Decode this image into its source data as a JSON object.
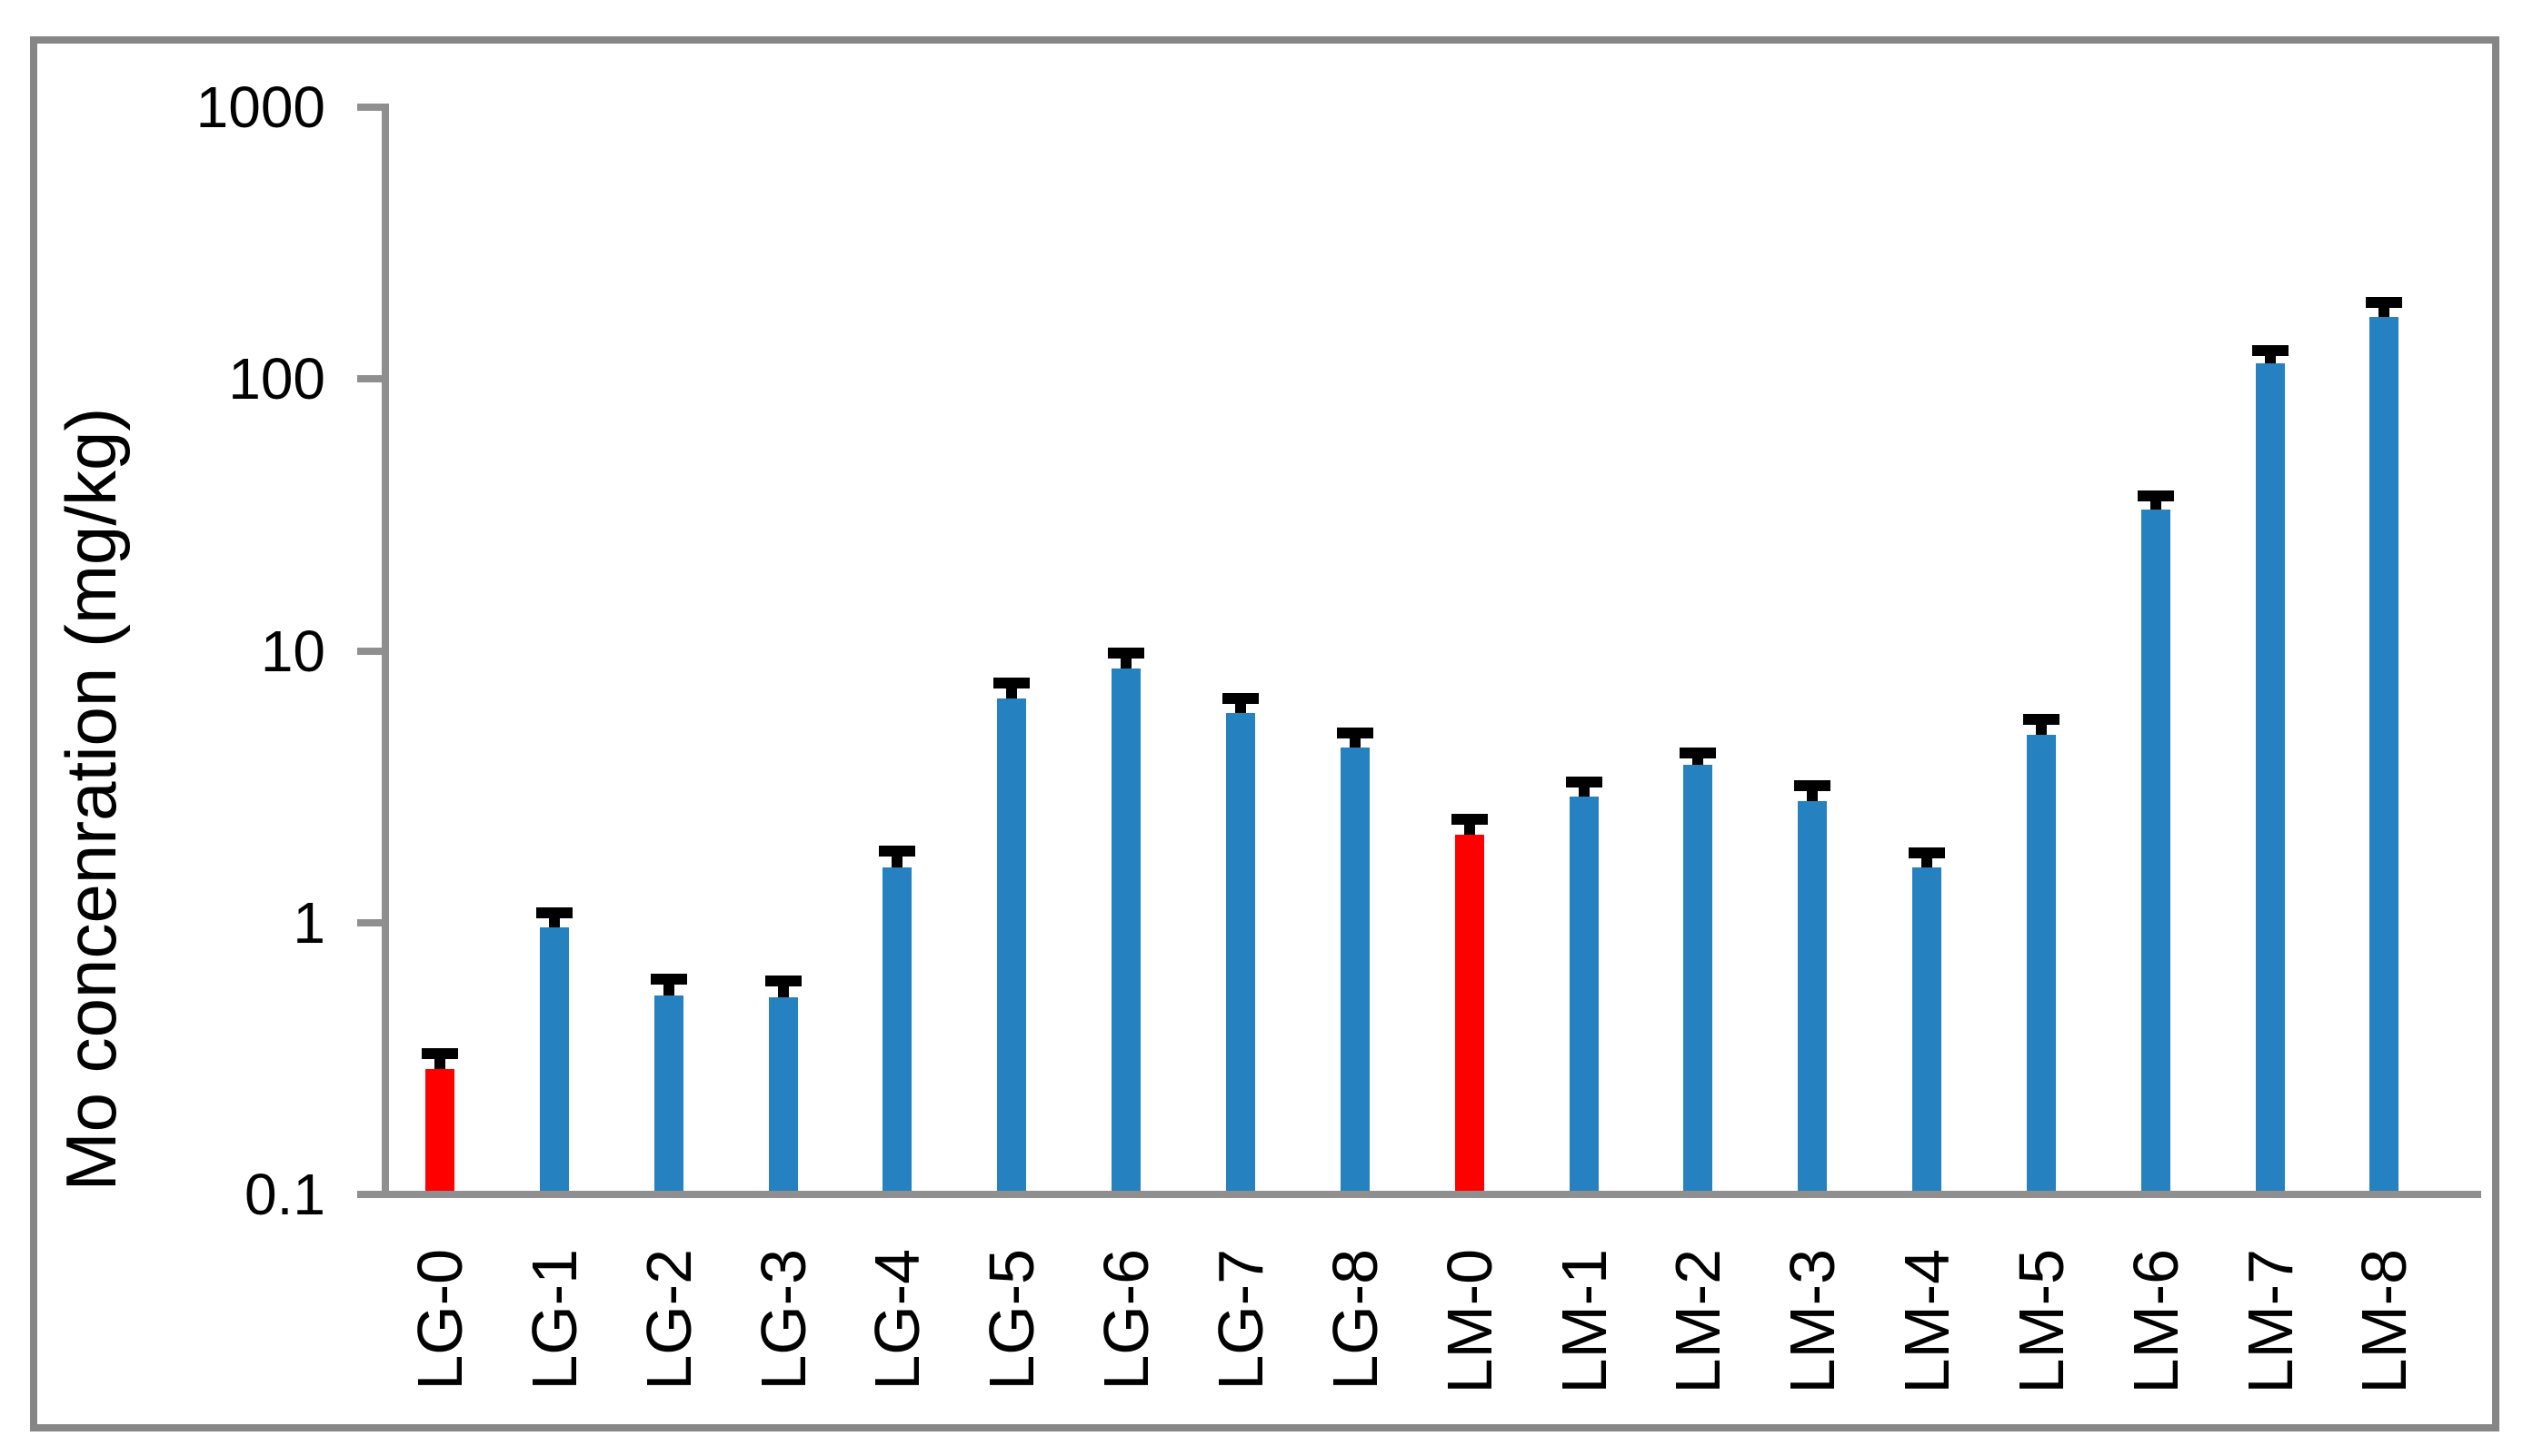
{
  "chart_data": {
    "type": "bar",
    "title": "",
    "ylabel": "Mo concenration (mg/kg)",
    "xlabel": "",
    "yscale": "log",
    "ylim": [
      0.1,
      1000
    ],
    "ytick_values": [
      1000,
      100,
      10,
      1,
      0.1
    ],
    "ytick_labels": [
      "1000",
      "100",
      "10",
      "1",
      "0.1"
    ],
    "grid": false,
    "legend": "none",
    "categories": [
      "LG-0",
      "LG-1",
      "LG-2",
      "LG-3",
      "LG-4",
      "LG-5",
      "LG-6",
      "LG-7",
      "LG-8",
      "LM-0",
      "LM-1",
      "LM-2",
      "LM-3",
      "LM-4",
      "LM-5",
      "LM-6",
      "LM-7",
      "LM-8"
    ],
    "series": [
      {
        "name": "Mo concentration",
        "values": [
          0.29,
          0.96,
          0.54,
          0.53,
          1.6,
          6.7,
          8.6,
          5.9,
          4.4,
          2.1,
          2.9,
          3.8,
          2.8,
          1.6,
          4.9,
          33,
          114,
          169
        ],
        "error_bar_tops": [
          0.33,
          1.09,
          0.62,
          0.61,
          1.83,
          7.6,
          9.8,
          6.7,
          5.0,
          2.4,
          3.3,
          4.2,
          3.2,
          1.8,
          5.6,
          37,
          127,
          191
        ]
      }
    ],
    "highlighted_categories": [
      "LG-0",
      "LM-0"
    ],
    "colors": {
      "bar_default": "#2581C0",
      "bar_highlight": "#FF0000",
      "error_bar": "#000000",
      "axis": "#8F8F8F",
      "frame": "#868686",
      "text": "#000000",
      "background": "#FFFFFF"
    }
  }
}
